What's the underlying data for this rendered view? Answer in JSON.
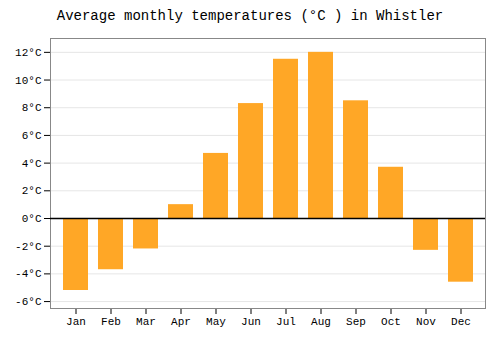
{
  "chart_data": {
    "type": "bar",
    "title": "Average monthly temperatures (°C ) in Whistler",
    "categories": [
      "Jan",
      "Feb",
      "Mar",
      "Apr",
      "May",
      "Jun",
      "Jul",
      "Aug",
      "Sep",
      "Oct",
      "Nov",
      "Dec"
    ],
    "values": [
      -5.2,
      -3.7,
      -2.2,
      1.0,
      4.7,
      8.3,
      11.5,
      12.0,
      8.5,
      3.7,
      -2.3,
      -4.6
    ],
    "color": "#FFA726",
    "ylim": [
      -6.5,
      13.0
    ],
    "yticks": [
      {
        "value": -6,
        "label": "-6°C"
      },
      {
        "value": -4,
        "label": "-4°C"
      },
      {
        "value": -2,
        "label": "-2°C"
      },
      {
        "value": 0,
        "label": "0°C"
      },
      {
        "value": 2,
        "label": "2°C"
      },
      {
        "value": 4,
        "label": "4°C"
      },
      {
        "value": 6,
        "label": "6°C"
      },
      {
        "value": 8,
        "label": "8°C"
      },
      {
        "value": 10,
        "label": "10°C"
      },
      {
        "value": 12,
        "label": "12°C"
      }
    ],
    "grid": true
  }
}
